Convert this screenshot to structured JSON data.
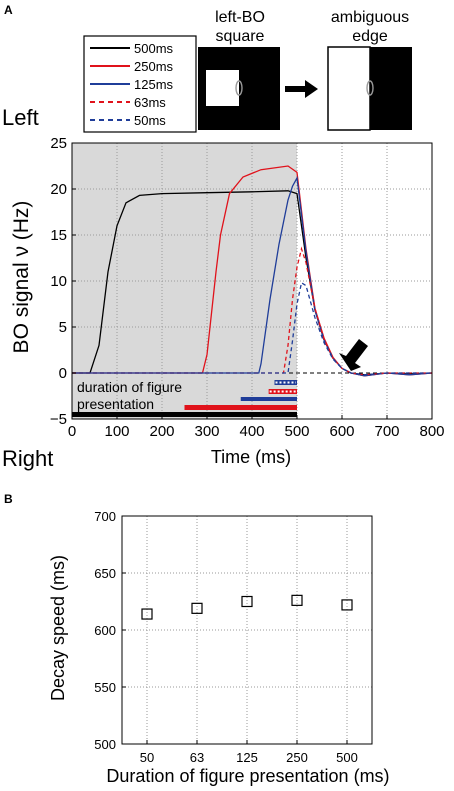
{
  "panel_labels": {
    "a": "A",
    "b": "B"
  },
  "schematic": {
    "square_label_line1": "left-BO",
    "square_label_line2": "square",
    "edge_label_line1": "ambiguous",
    "edge_label_line2": "edge"
  },
  "side_labels": {
    "left": "Left",
    "right": "Right"
  },
  "colors": {
    "black": "#000000",
    "red": "#e0121b",
    "blue": "#1f3d99",
    "shade": "#d9d9d9",
    "grid": "#9a9a9a"
  },
  "chart_data": [
    {
      "type": "line",
      "panel": "A",
      "xlabel": "Time (ms)",
      "ylabel": "BO signal ν (Hz)",
      "xlim": [
        0,
        800
      ],
      "ylim": [
        -5,
        25
      ],
      "xticks": [
        0,
        100,
        200,
        300,
        400,
        500,
        600,
        700,
        800
      ],
      "yticks": [
        -5,
        0,
        5,
        10,
        15,
        20,
        25
      ],
      "xtick_labels": [
        "0",
        "100",
        "200",
        "300",
        "400",
        "500",
        "600",
        "700",
        "800"
      ],
      "ytick_labels": [
        "−5",
        "0",
        "5",
        "10",
        "15",
        "20",
        "25"
      ],
      "grid": true,
      "legend_position": "top-left, above plot",
      "shaded_region": [
        0,
        500
      ],
      "annotation": "duration of figure presentation",
      "annotation_line1": "duration of figure",
      "annotation_line2": "presentation",
      "arrow_at": [
        620,
        0
      ],
      "series": [
        {
          "name": "500ms",
          "color": "#000000",
          "dash": "solid",
          "duration": 500,
          "x": [
            0,
            40,
            60,
            80,
            100,
            120,
            150,
            200,
            300,
            400,
            480,
            500,
            520,
            540,
            560,
            580,
            600,
            620,
            650,
            700,
            750,
            800
          ],
          "y": [
            0,
            0,
            3,
            11,
            16,
            18.5,
            19.3,
            19.5,
            19.6,
            19.7,
            19.8,
            19.5,
            12.5,
            6.8,
            3.6,
            1.6,
            0.5,
            0,
            -0.2,
            0,
            -0.1,
            0
          ]
        },
        {
          "name": "250ms",
          "color": "#e0121b",
          "dash": "solid",
          "duration": 250,
          "x": [
            0,
            290,
            300,
            320,
            330,
            350,
            380,
            420,
            480,
            500,
            520,
            540,
            560,
            580,
            600,
            620,
            650,
            700,
            750,
            800
          ],
          "y": [
            0,
            0,
            2,
            11,
            15,
            19.5,
            21.3,
            22.1,
            22.5,
            21.8,
            13.5,
            7,
            3.8,
            1.7,
            0.5,
            0,
            -0.3,
            0,
            -0.2,
            0
          ]
        },
        {
          "name": "125ms",
          "color": "#1f3d99",
          "dash": "solid",
          "duration": 125,
          "x": [
            0,
            415,
            420,
            440,
            460,
            480,
            490,
            500,
            520,
            540,
            560,
            580,
            600,
            620,
            650,
            700,
            750,
            800
          ],
          "y": [
            0,
            0,
            1,
            8,
            14,
            18.8,
            20.3,
            21.2,
            13.2,
            6.8,
            3.6,
            1.6,
            0.5,
            0,
            -0.3,
            0,
            -0.2,
            0
          ]
        },
        {
          "name": "63ms",
          "color": "#e0121b",
          "dash": "dashed",
          "duration": 63,
          "x": [
            0,
            470,
            480,
            490,
            500,
            510,
            520,
            540,
            560,
            580,
            600,
            620,
            650,
            700,
            800
          ],
          "y": [
            0,
            0,
            3,
            8,
            11.5,
            13.5,
            12,
            7,
            3.7,
            1.6,
            0.5,
            0,
            -0.2,
            0,
            0
          ]
        },
        {
          "name": "50ms",
          "color": "#1f3d99",
          "dash": "dashed",
          "duration": 50,
          "x": [
            0,
            480,
            490,
            500,
            510,
            520,
            540,
            560,
            580,
            600,
            620,
            650,
            700,
            800
          ],
          "y": [
            0,
            0,
            3.5,
            7.5,
            9.8,
            9.5,
            6,
            3.3,
            1.5,
            0.5,
            0,
            -0.2,
            0,
            0
          ]
        }
      ]
    },
    {
      "type": "scatter",
      "panel": "B",
      "xlabel": "Duration of figure presentation (ms)",
      "ylabel": "Decay speed (ms)",
      "categories": [
        "50",
        "63",
        "125",
        "250",
        "500"
      ],
      "values": [
        614,
        619,
        625,
        626,
        622
      ],
      "ylim": [
        500,
        700
      ],
      "yticks": [
        500,
        550,
        600,
        650,
        700
      ],
      "ytick_labels": [
        "500",
        "550",
        "600",
        "650",
        "700"
      ],
      "grid": true,
      "marker": "square"
    }
  ]
}
